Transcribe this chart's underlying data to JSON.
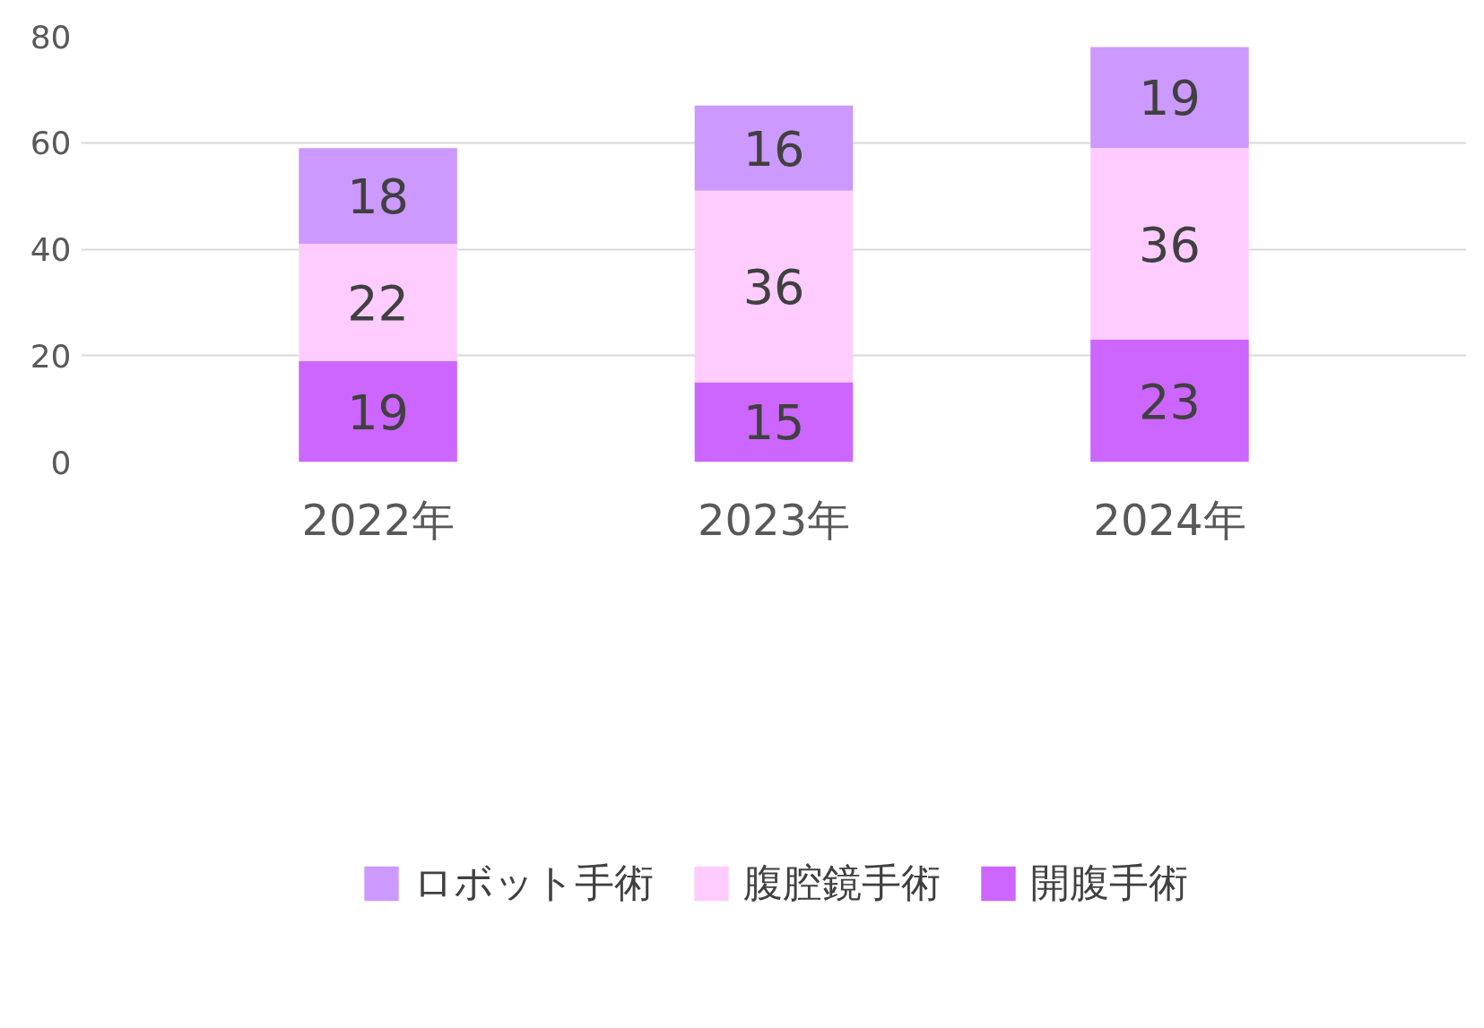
{
  "chart_data": {
    "type": "bar",
    "stacked": true,
    "categories": [
      "2022年",
      "2023年",
      "2024年"
    ],
    "series": [
      {
        "name": "開腹手術",
        "color": "#cc66ff",
        "values": [
          19,
          15,
          23
        ]
      },
      {
        "name": "腹腔鏡手術",
        "color": "#ffccff",
        "values": [
          22,
          36,
          36
        ]
      },
      {
        "name": "ロボット手術",
        "color": "#cc99ff",
        "values": [
          18,
          16,
          19
        ]
      }
    ],
    "ylim": [
      0,
      80
    ],
    "yticks": [
      0,
      20,
      40,
      60,
      80
    ],
    "grid": "y",
    "legend": "bottom",
    "data_labels": true
  }
}
